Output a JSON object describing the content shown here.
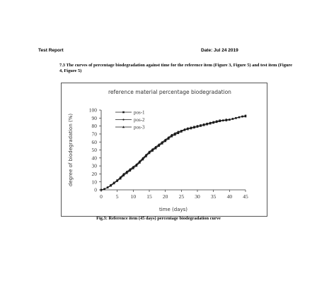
{
  "header": {
    "left": "Test Report",
    "right": "Date: Jul 24 2019"
  },
  "section": {
    "text": "7.3 The curves of percentage biodegradation against time for the reference item (Figure 3, Figure 5) and test item (Figure 4, Figure 5)"
  },
  "caption": "Fig.3: Reference item (45 days) percentage biodegradation curve",
  "chart_data": {
    "type": "line",
    "title": "reference material percentage biodegradation",
    "xlabel": "time (days)",
    "ylabel": "degree of biodegradation (%)",
    "xlim": [
      0,
      45
    ],
    "ylim": [
      0,
      100
    ],
    "xticks": [
      "0",
      "5",
      "10",
      "15",
      "20",
      "25",
      "30",
      "35",
      "40",
      "45"
    ],
    "yticks": [
      "0",
      "10",
      "20",
      "30",
      "40",
      "50",
      "60",
      "70",
      "80",
      "90",
      "100"
    ],
    "grid": false,
    "legend_position": "top-left",
    "x": [
      0,
      1,
      2,
      3,
      4,
      5,
      6,
      7,
      8,
      9,
      10,
      11,
      12,
      13,
      14,
      15,
      16,
      17,
      18,
      19,
      20,
      21,
      22,
      23,
      24,
      25,
      26,
      27,
      28,
      29,
      30,
      31,
      32,
      33,
      34,
      35,
      36,
      37,
      38,
      39,
      40,
      41,
      42,
      43,
      44,
      45
    ],
    "series": [
      {
        "name": "pos-1",
        "marker": "square",
        "values": [
          0,
          1,
          3,
          6,
          9,
          12,
          15,
          19,
          22,
          25,
          28,
          31,
          35,
          39,
          43,
          47,
          50,
          53,
          56,
          59,
          62,
          65,
          68,
          70,
          72,
          74,
          75,
          77,
          78,
          79,
          80,
          81,
          82,
          83,
          84,
          85,
          86,
          87,
          87,
          88,
          88,
          89,
          90,
          91,
          92,
          93
        ]
      },
      {
        "name": "pos-2",
        "marker": "dot",
        "values": [
          0,
          1,
          3,
          6,
          9,
          12,
          16,
          20,
          23,
          26,
          29,
          32,
          36,
          40,
          44,
          48,
          51,
          54,
          57,
          60,
          63,
          66,
          69,
          71,
          73,
          74,
          76,
          77,
          78,
          79,
          80,
          81,
          82,
          83,
          84,
          85,
          86,
          87,
          87,
          88,
          88,
          89,
          90,
          91,
          92,
          93
        ]
      },
      {
        "name": "pos-3",
        "marker": "triangle",
        "values": [
          0,
          1,
          3,
          5,
          8,
          11,
          14,
          18,
          21,
          24,
          27,
          30,
          34,
          38,
          42,
          46,
          49,
          52,
          55,
          58,
          61,
          64,
          67,
          69,
          71,
          73,
          75,
          76,
          77,
          78,
          79,
          80,
          81,
          82,
          83,
          84,
          85,
          86,
          87,
          87,
          88,
          89,
          90,
          91,
          92,
          92
        ]
      }
    ]
  },
  "colors": {
    "series": "#1a1a1a",
    "axis": "#333333",
    "frame": "#555555"
  }
}
